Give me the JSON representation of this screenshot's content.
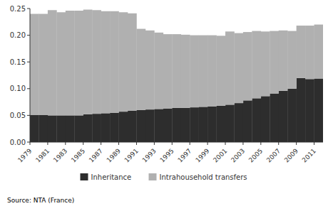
{
  "chart_data": {
    "type": "bar",
    "stacked": true,
    "x": [
      1979,
      1980,
      1981,
      1982,
      1983,
      1984,
      1985,
      1986,
      1987,
      1988,
      1989,
      1990,
      1991,
      1992,
      1993,
      1994,
      1995,
      1996,
      1997,
      1998,
      1999,
      2000,
      2001,
      2002,
      2003,
      2004,
      2005,
      2006,
      2007,
      2008,
      2009,
      2010,
      2011
    ],
    "series": [
      {
        "name": "Inheritance",
        "color": "#2d2d2d",
        "values": [
          0.051,
          0.051,
          0.05,
          0.05,
          0.05,
          0.05,
          0.052,
          0.053,
          0.054,
          0.055,
          0.057,
          0.059,
          0.06,
          0.061,
          0.062,
          0.063,
          0.064,
          0.064,
          0.065,
          0.066,
          0.067,
          0.068,
          0.07,
          0.073,
          0.078,
          0.082,
          0.086,
          0.091,
          0.096,
          0.1,
          0.12,
          0.118,
          0.119
        ]
      },
      {
        "name": "Intrahousehold transfers",
        "color": "#b0b0b0",
        "values": [
          0.189,
          0.189,
          0.197,
          0.193,
          0.196,
          0.196,
          0.196,
          0.194,
          0.191,
          0.19,
          0.186,
          0.182,
          0.152,
          0.148,
          0.143,
          0.139,
          0.138,
          0.137,
          0.135,
          0.134,
          0.133,
          0.131,
          0.137,
          0.131,
          0.128,
          0.126,
          0.121,
          0.117,
          0.113,
          0.108,
          0.098,
          0.1,
          0.101
        ]
      }
    ],
    "xlim": [
      1979,
      2012
    ],
    "xticks": [
      1979,
      1981,
      1983,
      1985,
      1987,
      1989,
      1991,
      1993,
      1995,
      1997,
      1999,
      2001,
      2003,
      2005,
      2007,
      2009,
      2011
    ],
    "ylim": [
      0,
      0.25
    ],
    "yticks": [
      {
        "value": 0,
        "label": "0.00"
      },
      {
        "value": 0.05,
        "label": "0.05"
      },
      {
        "value": 0.1,
        "label": "0.10"
      },
      {
        "value": 0.15,
        "label": "0.15"
      },
      {
        "value": 0.2,
        "label": "0.20"
      },
      {
        "value": 0.25,
        "label": "0.25"
      }
    ],
    "grid": false,
    "legend": "bottom",
    "annotations": [
      "Source: NTA (France)"
    ]
  }
}
